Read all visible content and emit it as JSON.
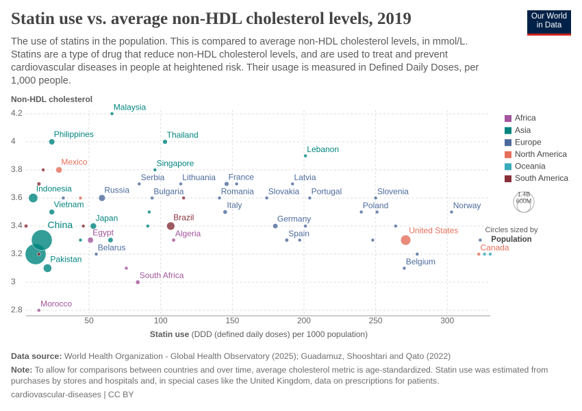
{
  "chart_data": {
    "type": "bubble",
    "title": "Statin use vs. average non-HDL cholesterol levels, 2019",
    "subtitle": "The use of statins in the population. This is compared to average non-HDL cholesterol levels, in mmol/L. Statins are a type of drug that reduce non-HDL cholesterol levels, and are used to treat and prevent cardiovascular diseases in people at heightened risk. Their usage is measured in Defined Daily Doses, per 1,000 people.",
    "logo": [
      "Our World",
      "in Data"
    ],
    "ylabel": "Non-HDL cholesterol",
    "xlabel": {
      "name": "Statin use",
      "unit": "(DDD (defined daily doses) per 1000 population)"
    },
    "xlim": [
      6,
      330
    ],
    "xticks": [
      50,
      100,
      150,
      200,
      250,
      300
    ],
    "ylim": [
      2.8,
      4.2
    ],
    "yticks": [
      2.8,
      3,
      3.2,
      3.4,
      3.6,
      3.8,
      4,
      4.2
    ],
    "grid": true,
    "legend_position": "right",
    "size_legend": {
      "ticks": [
        {
          "value": 1400,
          "label": "1.4B"
        },
        {
          "value": 600,
          "label": "600M"
        }
      ],
      "caption": "Circles sized by",
      "variable": "Population"
    },
    "series": [
      {
        "name": "Africa",
        "color": "#a2559c",
        "x": [
          51,
          109,
          84,
          15,
          76
        ],
        "values": [
          3.3,
          3.3,
          3.0,
          2.8,
          3.1
        ],
        "sizes": [
          110,
          45,
          60,
          37,
          10
        ],
        "labels": [
          "Egypt",
          "Algeria",
          "South Africa",
          "Morocco",
          null
        ]
      },
      {
        "name": "Asia",
        "color": "#00847e",
        "x": [
          66,
          24,
          103,
          201,
          96,
          11,
          24,
          53,
          17,
          12.7,
          21,
          65,
          91,
          92,
          44
        ],
        "values": [
          4.2,
          4.0,
          4.0,
          3.9,
          3.8,
          3.6,
          3.5,
          3.4,
          3.3,
          3.2,
          3.1,
          3.3,
          3.4,
          3.5,
          3.3
        ],
        "sizes": [
          33,
          114,
          72,
          5,
          6,
          276,
          98,
          125,
          1410,
          1420,
          230,
          85,
          20,
          5,
          10
        ],
        "labels": [
          "Malaysia",
          "Philippines",
          "Thailand",
          "Lebanon",
          "Singapore",
          "Indonesia",
          "Vietnam",
          "Japan",
          "China",
          null,
          "Pakistan",
          null,
          null,
          null,
          null
        ]
      },
      {
        "name": "Europe",
        "color": "#4c6a9c",
        "x": [
          85,
          114,
          146,
          192,
          59,
          94,
          141,
          174,
          204,
          250,
          145,
          240,
          303,
          180,
          188,
          55,
          270,
          32,
          251,
          264,
          248,
          323,
          279,
          197,
          201,
          153
        ],
        "values": [
          3.7,
          3.7,
          3.7,
          3.7,
          3.6,
          3.6,
          3.6,
          3.6,
          3.6,
          3.6,
          3.5,
          3.5,
          3.5,
          3.4,
          3.3,
          3.2,
          3.1,
          3.6,
          3.5,
          3.4,
          3.3,
          3.3,
          3.2,
          3.3,
          3.4,
          3.7
        ],
        "sizes": [
          7,
          3,
          68,
          2,
          145,
          7,
          19,
          5,
          10,
          2,
          59,
          38,
          5,
          83,
          47,
          9,
          12,
          10,
          4,
          10,
          5,
          17,
          6,
          3,
          2,
          4
        ],
        "labels": [
          "Serbia",
          "Lithuania",
          "France",
          "Latvia",
          "Russia",
          "Bulgaria",
          "Romania",
          "Slovakia",
          "Portugal",
          "Slovenia",
          "Italy",
          "Poland",
          "Norway",
          "Germany",
          "Spain",
          "Belarus",
          "Belgium",
          null,
          null,
          null,
          null,
          null,
          null,
          null,
          null,
          null
        ]
      },
      {
        "name": "North America",
        "color": "#e56e5a",
        "x": [
          29,
          271,
          322,
          44
        ],
        "values": [
          3.8,
          3.3,
          3.2,
          3.6
        ],
        "sizes": [
          128,
          335,
          38,
          3
        ],
        "labels": [
          "Mexico",
          "United States",
          "Canada",
          null
        ]
      },
      {
        "name": "Oceania",
        "color": "#38aaba",
        "x": [
          326,
          330
        ],
        "values": [
          3.2,
          3.2
        ],
        "sizes": [
          26,
          5
        ],
        "labels": [
          null,
          null
        ]
      },
      {
        "name": "South America",
        "color": "#883039",
        "x": [
          107,
          15,
          18,
          6,
          15,
          46,
          116
        ],
        "values": [
          3.4,
          3.7,
          3.8,
          3.4,
          3.2,
          3.4,
          3.6
        ],
        "sizes": [
          215,
          50,
          7,
          45,
          33,
          19,
          3
        ],
        "labels": [
          "Brazil",
          null,
          null,
          null,
          null,
          null,
          null
        ]
      }
    ],
    "source": {
      "label": "Data source:",
      "text": "World Health Organization - Global Health Observatory (2025); Guadamuz, Shooshtari and Qato (2022)"
    },
    "note": {
      "label": "Note:",
      "text": "To allow for comparisons between countries and over time, average cholesterol metric is age-standardized. Statin use was estimated from purchases by stores and hospitals and, in special cases like the United Kingdom, data on prescriptions for patients."
    },
    "footer": "cardiovascular-diseases | CC BY"
  }
}
